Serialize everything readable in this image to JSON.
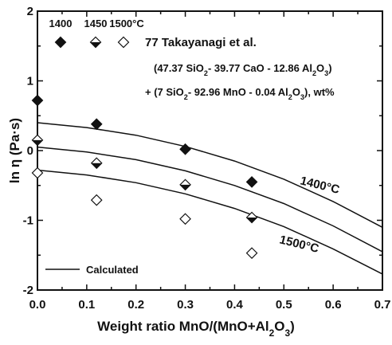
{
  "chart_data": {
    "type": "scatter",
    "xlabel": "Weight ratio MnO/(MnO+Al2O3)",
    "ylabel": "ln η (Pa·s)",
    "xlim": [
      0.0,
      0.7
    ],
    "ylim": [
      -2,
      2
    ],
    "x_ticks": [
      "0.0",
      "0.1",
      "0.2",
      "0.3",
      "0.4",
      "0.5",
      "0.6",
      "0.7"
    ],
    "y_ticks": [
      "2",
      "1",
      "0",
      "-1",
      "-2"
    ],
    "grid": false,
    "legend_placement": "top-left",
    "legend_temperatures": [
      "1400",
      "1450",
      "1500°C"
    ],
    "legend_reference": "77 Takayanagi et al.",
    "composition_line1": "(47.37 SiO2- 39.77 CaO - 12.86 Al2O3)",
    "composition_line2": "+ (7 SiO2- 92.96 MnO - 0.04 Al2O3), wt%",
    "series": [
      {
        "name": "1400",
        "marker": "diamond-filled",
        "x": [
          0.0,
          0.12,
          0.3,
          0.435
        ],
        "y": [
          0.72,
          0.38,
          0.02,
          -0.45
        ]
      },
      {
        "name": "1450",
        "marker": "diamond-half",
        "x": [
          0.0,
          0.12,
          0.3,
          0.435
        ],
        "y": [
          0.15,
          -0.18,
          -0.49,
          -0.96
        ]
      },
      {
        "name": "1500°C",
        "marker": "diamond-open",
        "x": [
          0.0,
          0.12,
          0.3,
          0.435
        ],
        "y": [
          -0.32,
          -0.71,
          -0.98,
          -1.47
        ]
      }
    ],
    "curves": [
      {
        "name": "1400°C",
        "x": [
          0.0,
          0.1,
          0.2,
          0.3,
          0.4,
          0.5,
          0.6,
          0.7
        ],
        "y": [
          0.4,
          0.33,
          0.22,
          0.06,
          -0.15,
          -0.41,
          -0.73,
          -1.1
        ]
      },
      {
        "name": "",
        "x": [
          0.0,
          0.1,
          0.2,
          0.3,
          0.4,
          0.5,
          0.6,
          0.7
        ],
        "y": [
          0.05,
          -0.02,
          -0.13,
          -0.29,
          -0.5,
          -0.76,
          -1.08,
          -1.45
        ]
      },
      {
        "name": "1500°C",
        "x": [
          0.0,
          0.1,
          0.2,
          0.3,
          0.4,
          0.5,
          0.6,
          0.7
        ],
        "y": [
          -0.28,
          -0.35,
          -0.46,
          -0.62,
          -0.83,
          -1.09,
          -1.41,
          -1.77
        ]
      }
    ],
    "curve_legend": "Calculated",
    "colors": {
      "ink": "#111111",
      "background": "#ffffff"
    }
  }
}
